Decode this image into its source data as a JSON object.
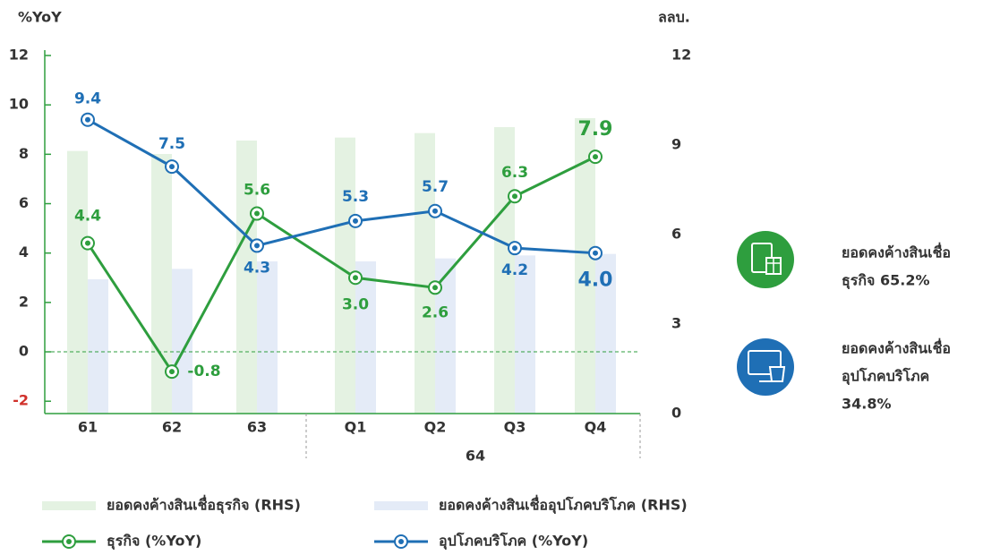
{
  "chart_data": {
    "type": "bar_line_combo",
    "y_axis_label": "%YoY",
    "y2_axis_label": "ลลบ.",
    "categories": [
      "61",
      "62",
      "63",
      "Q1",
      "Q2",
      "Q3",
      "Q4"
    ],
    "x_groups": [
      {
        "label": "64",
        "from": 3,
        "to": 6
      }
    ],
    "ylim": [
      -2.5,
      12
    ],
    "yticks": [
      -2,
      0,
      2,
      4,
      6,
      8,
      10,
      12
    ],
    "y2lim": [
      0,
      12
    ],
    "y2ticks": [
      0,
      3,
      6,
      9,
      12
    ],
    "zero_line": true,
    "series": [
      {
        "name": "ยอดคงค้างสินเชื่อธุรกิจ (RHS)",
        "kind": "bar",
        "axis": "y2",
        "color": "#e4f2e2",
        "values": [
          8.8,
          8.7,
          9.15,
          9.25,
          9.4,
          9.6,
          9.9
        ]
      },
      {
        "name": "ยอดคงค้างสินเชื่ออุปโภคบริโภค (RHS)",
        "kind": "bar",
        "axis": "y2",
        "color": "#e4ebf7",
        "values": [
          4.5,
          4.85,
          5.1,
          5.1,
          5.2,
          5.3,
          5.35
        ]
      },
      {
        "name": "ธุรกิจ (%YoY)",
        "kind": "line",
        "color": "#2e9e3e",
        "values": [
          4.4,
          -0.8,
          5.6,
          3.0,
          2.6,
          6.3,
          7.9
        ],
        "value_labels": [
          "4.4",
          "-0.8",
          "5.6",
          "3.0",
          "2.6",
          "6.3",
          "7.9"
        ]
      },
      {
        "name": "อุปโภคบริโภค (%YoY)",
        "kind": "line",
        "color": "#1f6fb5",
        "values": [
          9.4,
          7.5,
          4.3,
          5.3,
          5.7,
          4.2,
          4.0
        ],
        "value_labels": [
          "9.4",
          "7.5",
          "4.3",
          "5.3",
          "5.7",
          "4.2",
          "4.0"
        ]
      }
    ],
    "side_notes": [
      {
        "lines": [
          "ยอดคงค้างสินเชื่อ",
          "ธุรกิจ 65.2%"
        ],
        "color": "#2e9e3e"
      },
      {
        "lines": [
          "ยอดคงค้างสินเชื่อ",
          "อุปโภคบริโภค",
          "34.8%"
        ],
        "color": "#1f6fb5"
      }
    ]
  }
}
